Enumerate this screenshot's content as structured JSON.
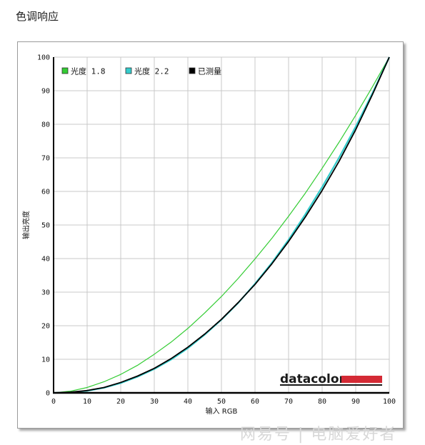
{
  "page": {
    "title": "色调响应"
  },
  "watermark": {
    "text": "网易号 | 电脑爱好者"
  },
  "chart_data": {
    "type": "line",
    "title": "",
    "xlabel": "输入 RGB",
    "ylabel": "输出亮度",
    "xlim": [
      0,
      100
    ],
    "ylim": [
      0,
      100
    ],
    "xticks": [
      0,
      10,
      20,
      30,
      40,
      50,
      60,
      70,
      80,
      90,
      100
    ],
    "yticks": [
      0,
      10,
      20,
      30,
      40,
      50,
      60,
      70,
      80,
      90,
      100
    ],
    "grid": true,
    "legend_position": "top-left",
    "x": [
      0,
      5,
      10,
      15,
      20,
      25,
      30,
      35,
      40,
      45,
      50,
      55,
      60,
      65,
      70,
      75,
      80,
      85,
      90,
      95,
      100
    ],
    "series": [
      {
        "name": "光度 1.8",
        "color": "#33cc33",
        "values": [
          0,
          0.5,
          1.6,
          3.3,
          5.5,
          8.2,
          11.5,
          15.1,
          19.2,
          23.8,
          28.7,
          34.1,
          39.9,
          46.0,
          52.6,
          59.5,
          66.9,
          74.6,
          82.7,
          91.2,
          100
        ]
      },
      {
        "name": "光度 2.2",
        "color": "#33cccc",
        "values": [
          0,
          0.1,
          0.6,
          1.5,
          2.9,
          4.8,
          7.1,
          9.9,
          13.3,
          17.3,
          21.8,
          26.8,
          32.5,
          38.7,
          45.6,
          53.2,
          61.3,
          70.0,
          79.3,
          89.3,
          100
        ]
      },
      {
        "name": "已测量",
        "color": "#000000",
        "values": [
          0,
          0.2,
          0.7,
          1.6,
          3.1,
          5.0,
          7.3,
          10.2,
          13.6,
          17.5,
          21.9,
          26.9,
          32.3,
          38.4,
          45.1,
          52.4,
          60.3,
          68.9,
          78.4,
          88.9,
          100
        ]
      }
    ]
  },
  "brand": {
    "name": "datacolor",
    "bar_color": "#d42a35"
  }
}
